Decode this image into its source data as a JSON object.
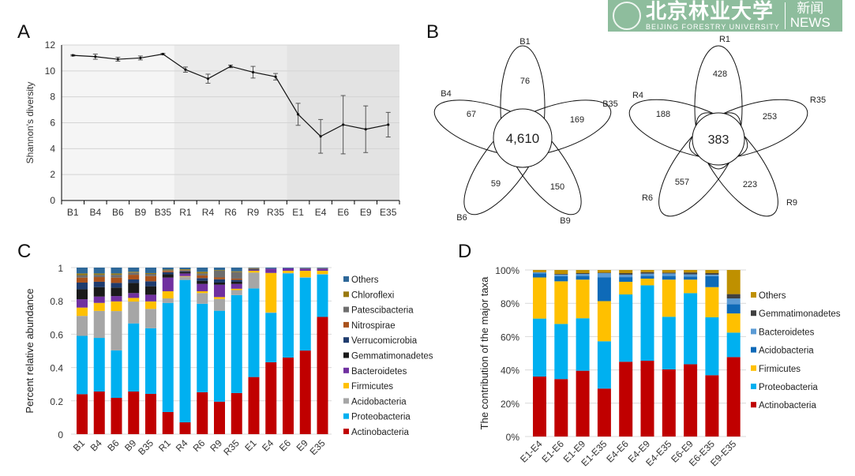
{
  "panel_labels": [
    "A",
    "B",
    "C",
    "D"
  ],
  "chart_data": [
    {
      "panel": "A",
      "type": "line",
      "ylabel": "Shannon's diversity",
      "xlabel": "",
      "ylim": [
        0,
        12
      ],
      "yticks": [
        0,
        2,
        4,
        6,
        8,
        10,
        12
      ],
      "grid": true,
      "categories": [
        "B1",
        "B4",
        "B6",
        "B9",
        "B35",
        "R1",
        "R4",
        "R6",
        "R9",
        "R35",
        "E1",
        "E4",
        "E6",
        "E9",
        "E35"
      ],
      "values": [
        11.2,
        11.1,
        10.9,
        11.0,
        11.3,
        10.1,
        9.4,
        10.35,
        9.9,
        9.55,
        6.65,
        4.95,
        5.85,
        5.5,
        5.85
      ],
      "errors": [
        0.05,
        0.2,
        0.15,
        0.15,
        0.05,
        0.2,
        0.35,
        0.1,
        0.45,
        0.25,
        0.85,
        1.3,
        2.25,
        1.8,
        0.95
      ],
      "background_groups": [
        {
          "from": "B1",
          "to": "B35",
          "color": "#f5f5f5"
        },
        {
          "from": "R1",
          "to": "R35",
          "color": "#ebebeb"
        },
        {
          "from": "E1",
          "to": "E35",
          "color": "#e3e3e3"
        }
      ]
    },
    {
      "panel": "B",
      "type": "venn",
      "diagrams": [
        {
          "core": "4,610",
          "sets": [
            {
              "label": "B1",
              "unique": "76"
            },
            {
              "label": "B35",
              "unique": "169"
            },
            {
              "label": "B9",
              "unique": "150"
            },
            {
              "label": "B6",
              "unique": "59"
            },
            {
              "label": "B4",
              "unique": "67"
            }
          ]
        },
        {
          "core": "383",
          "sets": [
            {
              "label": "R1",
              "unique": "428"
            },
            {
              "label": "R35",
              "unique": "253"
            },
            {
              "label": "R9",
              "unique": "223"
            },
            {
              "label": "R6",
              "unique": "557"
            },
            {
              "label": "R4",
              "unique": "188"
            }
          ]
        }
      ]
    },
    {
      "panel": "C",
      "type": "bar",
      "stacked": true,
      "ylabel": "Percent relative abundance",
      "ylim": [
        0,
        1
      ],
      "yticks": [
        "0",
        "0.2",
        "0.4",
        "0.6",
        "0.8",
        "1"
      ],
      "grid": true,
      "legend_position": "right",
      "categories": [
        "B1",
        "B4",
        "B6",
        "B9",
        "B35",
        "R1",
        "R4",
        "R6",
        "R9",
        "R35",
        "E1",
        "E4",
        "E6",
        "E9",
        "E35"
      ],
      "series": [
        {
          "name": "Actinobacteria",
          "color": "#c00000",
          "values": [
            0.24,
            0.256,
            0.218,
            0.256,
            0.242,
            0.133,
            0.071,
            0.252,
            0.195,
            0.247,
            0.343,
            0.432,
            0.46,
            0.502,
            0.704
          ]
        },
        {
          "name": "Proteobacteria",
          "color": "#00b0f0",
          "values": [
            0.35,
            0.322,
            0.285,
            0.409,
            0.394,
            0.655,
            0.855,
            0.531,
            0.546,
            0.588,
            0.532,
            0.296,
            0.505,
            0.438,
            0.255
          ]
        },
        {
          "name": "Acidobacteria",
          "color": "#a6a6a6",
          "values": [
            0.12,
            0.162,
            0.236,
            0.131,
            0.116,
            0.027,
            0.02,
            0.064,
            0.071,
            0.03,
            0.095,
            0.003,
            0.003,
            0.002,
            0.002
          ]
        },
        {
          "name": "Firmicutes",
          "color": "#ffc000",
          "values": [
            0.05,
            0.048,
            0.058,
            0.022,
            0.045,
            0.043,
            0.003,
            0.011,
            0.011,
            0.008,
            0.011,
            0.237,
            0.013,
            0.039,
            0.02
          ]
        },
        {
          "name": "Bacteroidetes",
          "color": "#7030a0",
          "values": [
            0.05,
            0.038,
            0.032,
            0.029,
            0.04,
            0.082,
            0.016,
            0.044,
            0.074,
            0.029,
            0.005,
            0.026,
            0.015,
            0.013,
            0.013
          ]
        },
        {
          "name": "Gemmatimonadetes",
          "color": "#1a1a1a",
          "values": [
            0.06,
            0.057,
            0.051,
            0.061,
            0.051,
            0.02,
            0.01,
            0.019,
            0.013,
            0.013,
            0.003,
            0,
            0,
            0,
            0
          ]
        },
        {
          "name": "Verrucomicrobia",
          "color": "#1f3c6e",
          "values": [
            0.04,
            0.032,
            0.028,
            0.021,
            0.03,
            0.012,
            0.005,
            0.016,
            0.02,
            0.011,
            0.002,
            0,
            0,
            0,
            0
          ]
        },
        {
          "name": "Nitrospirae",
          "color": "#a9521c",
          "values": [
            0.03,
            0.028,
            0.032,
            0.028,
            0.031,
            0.008,
            0.003,
            0.016,
            0.011,
            0.008,
            0.002,
            0,
            0,
            0,
            0
          ]
        },
        {
          "name": "Patescibacteria",
          "color": "#6e6e6e",
          "values": [
            0.015,
            0.014,
            0.017,
            0.013,
            0.013,
            0.004,
            0.002,
            0.012,
            0.04,
            0.039,
            0.002,
            0,
            0,
            0,
            0
          ]
        },
        {
          "name": "Chloroflexi",
          "color": "#99790e",
          "values": [
            0.01,
            0.008,
            0.008,
            0.005,
            0.005,
            0.004,
            0.005,
            0.01,
            0.004,
            0.005,
            0.002,
            0,
            0,
            0.002,
            0.002
          ]
        },
        {
          "name": "Others",
          "color": "#2e6899",
          "values": [
            0.035,
            0.035,
            0.035,
            0.025,
            0.033,
            0.012,
            0.01,
            0.025,
            0.015,
            0.022,
            0.003,
            0.006,
            0.004,
            0.004,
            0.004
          ]
        }
      ]
    },
    {
      "panel": "D",
      "type": "bar",
      "stacked": true,
      "ylabel": "The contribution of the major taxa",
      "ylim": [
        0,
        100
      ],
      "yticks": [
        "0%",
        "20%",
        "40%",
        "60%",
        "80%",
        "100%"
      ],
      "grid": true,
      "legend_position": "right",
      "categories": [
        "E1-E4",
        "E1-E6",
        "E1-E9",
        "E1-E35",
        "E4-E6",
        "E4-E9",
        "E4-E35",
        "E6-E9",
        "E6-E35",
        "E9-E35"
      ],
      "series": [
        {
          "name": "Actinobacteria",
          "color": "#c00000",
          "values": [
            36,
            34.5,
            39.5,
            28.8,
            44.9,
            45.5,
            40.3,
            43.4,
            36.8,
            47.7
          ]
        },
        {
          "name": "Proteobacteria",
          "color": "#00b0f0",
          "values": [
            34.8,
            33.1,
            31.5,
            28.4,
            40.4,
            45.3,
            31.6,
            42.7,
            34.8,
            14.7
          ]
        },
        {
          "name": "Firmicutes",
          "color": "#ffc000",
          "values": [
            24.7,
            25.6,
            23.2,
            24.1,
            7.6,
            4,
            22.3,
            8.1,
            18.1,
            11.5
          ]
        },
        {
          "name": "Acidobacteria",
          "color": "#0e6ab8",
          "values": [
            2.4,
            3.1,
            2.2,
            14.2,
            2.8,
            1.7,
            2.2,
            1.9,
            6.6,
            5.6
          ]
        },
        {
          "name": "Bacteroidetes",
          "color": "#5b9bd5",
          "values": [
            0.7,
            0.9,
            1.2,
            2.6,
            1.5,
            1.3,
            1.5,
            1.3,
            0.9,
            3.4
          ]
        },
        {
          "name": "Gemmatimonadetes",
          "color": "#404040",
          "values": [
            0,
            0.4,
            0.5,
            0.3,
            0.9,
            0.9,
            0.5,
            1.1,
            0.9,
            2.6
          ]
        },
        {
          "name": "Others",
          "color": "#bf9000",
          "values": [
            1.4,
            2.4,
            1.9,
            1.6,
            1.9,
            1.3,
            1.6,
            1.5,
            1.9,
            14.5
          ]
        }
      ]
    }
  ],
  "watermark": {
    "name_cn": "北京林业大学",
    "name_en": "BEIJING FORESTRY UNIVERSITY",
    "news_cn": "新闻",
    "news_en": "NEWS"
  }
}
